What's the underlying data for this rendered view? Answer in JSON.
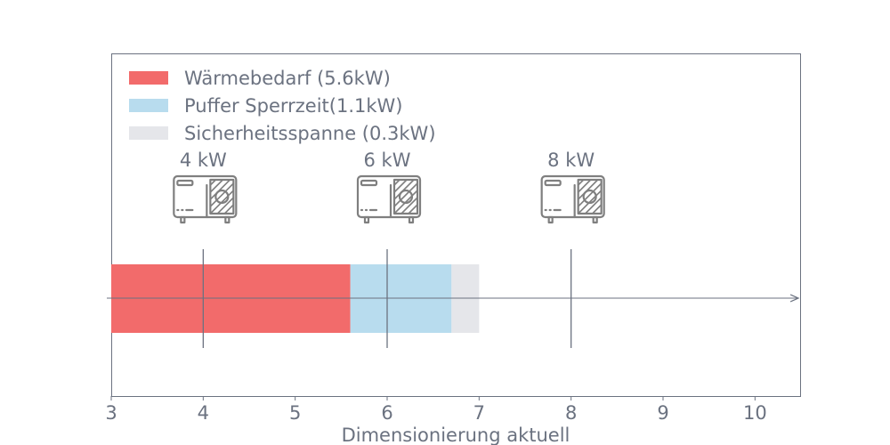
{
  "chart_data": {
    "type": "bar",
    "orientation": "horizontal-stacked",
    "xlabel": "Dimensionierung aktuell",
    "xlim": [
      3,
      10.5
    ],
    "ticks": [
      3,
      4,
      5,
      6,
      7,
      8,
      9,
      10
    ],
    "tick_labels": [
      "3",
      "4",
      "5",
      "6",
      "7",
      "8",
      "9",
      "10"
    ],
    "grid": false,
    "legend_position": "top-left",
    "series": [
      {
        "name": "Wärmebedarf (5.6kW)",
        "from": 3,
        "to": 5.6,
        "color": "#f26b6b"
      },
      {
        "name": "Puffer Sperrzeit(1.1kW)",
        "from": 5.6,
        "to": 6.7,
        "color": "#b8dcee"
      },
      {
        "name": "Sicherheitsspanne (0.3kW)",
        "from": 6.7,
        "to": 7.0,
        "color": "#e5e6ea"
      }
    ],
    "markers": [
      {
        "x": 4,
        "label": "4 kW",
        "icon": "heat-pump-icon"
      },
      {
        "x": 6,
        "label": "6 kW",
        "icon": "heat-pump-icon"
      },
      {
        "x": 8,
        "label": "8 kW",
        "icon": "heat-pump-icon"
      }
    ],
    "colors": {
      "axis": "#6b7280",
      "text": "#6b7280",
      "icon": "#7f7f7f"
    }
  }
}
